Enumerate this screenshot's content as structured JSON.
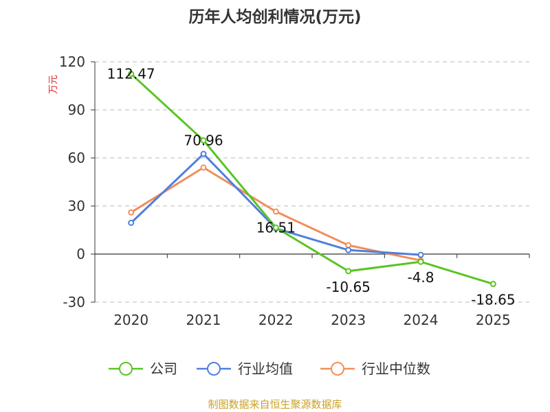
{
  "chart_data": {
    "type": "line",
    "title": "历年人均创利情况(万元)",
    "ylabel": "万元",
    "categories": [
      "2020",
      "2021",
      "2022",
      "2023",
      "2024",
      "2025"
    ],
    "yticks": [
      "120",
      "90",
      "60",
      "30",
      "0",
      "-30"
    ],
    "ylim": [
      -30,
      120
    ],
    "grid": true,
    "legend_position": "bottom",
    "series": [
      {
        "name": "公司",
        "color": "#5ac423",
        "values": [
          112.47,
          70.96,
          16.51,
          -10.65,
          -4.8,
          -18.65
        ],
        "labels": [
          "112.47",
          "70.96",
          "16.51",
          "-10.65",
          "-4.8",
          "-18.65"
        ]
      },
      {
        "name": "行业均值",
        "color": "#4e7fde",
        "values": [
          19.5,
          62.5,
          16.0,
          2.5,
          -0.5,
          null
        ]
      },
      {
        "name": "行业中位数",
        "color": "#f28e5a",
        "values": [
          26.0,
          54.0,
          26.5,
          5.5,
          -4.0,
          null
        ]
      }
    ]
  },
  "source": "制图数据来自恒生聚源数据库"
}
